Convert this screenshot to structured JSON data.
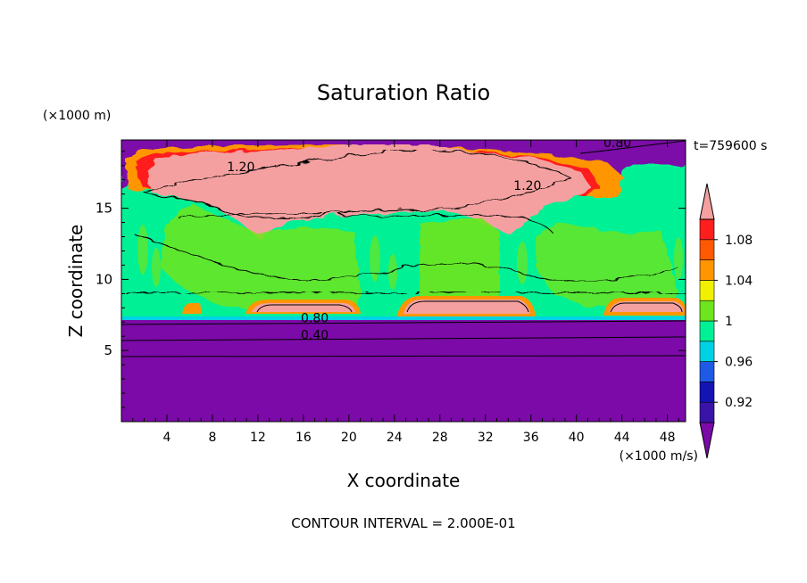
{
  "chart_data": {
    "type": "heatmap",
    "title": "Saturation Ratio",
    "xlabel": "X coordinate",
    "ylabel": "Z coordinate",
    "x_unit": "(×1000 m/s)",
    "y_unit": "(×1000 m)",
    "time_label": "t=759600 s",
    "footer": "CONTOUR INTERVAL = 2.000E-01",
    "xlim": [
      0,
      49.6
    ],
    "ylim": [
      0,
      19.8
    ],
    "xticks": [
      4,
      8,
      12,
      16,
      20,
      24,
      28,
      32,
      36,
      40,
      44,
      48
    ],
    "yticks": [
      5,
      10,
      15
    ],
    "colorbar": {
      "colors": [
        "#7b0aa8",
        "#3a14a8",
        "#1414b4",
        "#1e5ae6",
        "#00d2e6",
        "#00f096",
        "#6ee61e",
        "#f0f000",
        "#ff9600",
        "#ff5a00",
        "#ff1e1e",
        "#f5a0a0"
      ],
      "labels": [
        "0.92",
        "0.96",
        "1",
        "1.04",
        "1.08"
      ]
    },
    "contour_labels": [
      {
        "text": "1.20",
        "x": 10.5,
        "z": 17.6
      },
      {
        "text": "1.20",
        "x": 35.7,
        "z": 16.3
      },
      {
        "text": "0.80",
        "x": 43.6,
        "z": 19.3
      },
      {
        "text": "0.80",
        "x": 17.0,
        "z": 7.0
      },
      {
        "text": "0.40",
        "x": 17.0,
        "z": 5.8
      }
    ]
  }
}
